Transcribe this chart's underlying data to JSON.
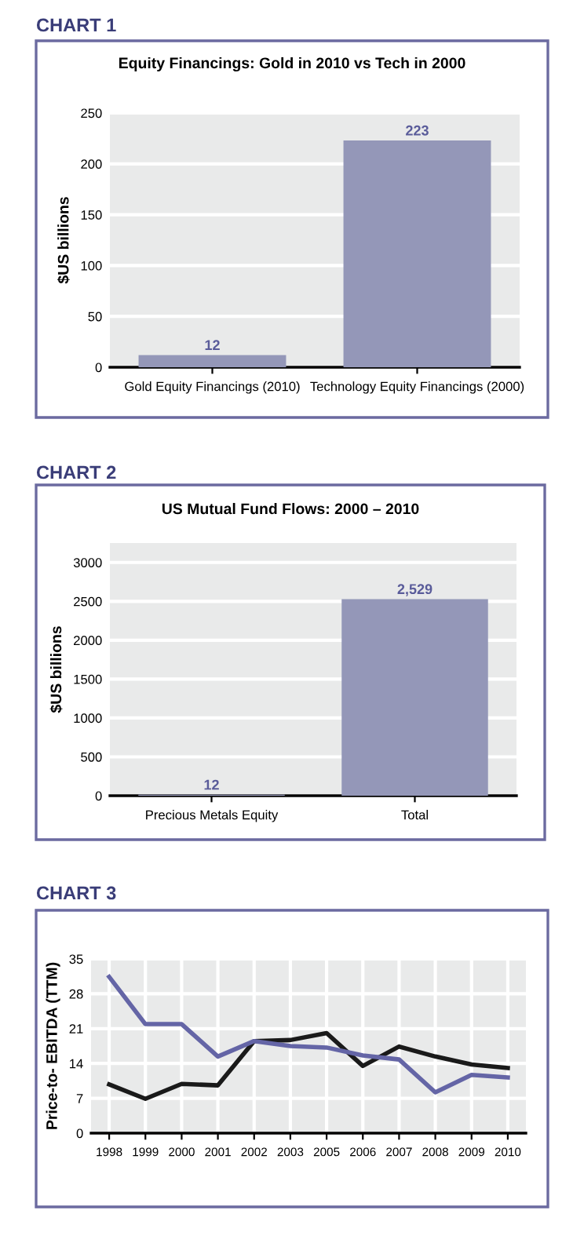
{
  "chart_data": [
    {
      "type": "bar",
      "title": "CHART 1",
      "subtitle": "Equity Financings: Gold in 2010 vs Tech in 2000",
      "ylabel": "$US billions",
      "categories": [
        "Gold Equity Financings (2010)",
        "Technology Equity Financings (2000)"
      ],
      "values": [
        12,
        223
      ],
      "color": "#9497b8",
      "ylim": [
        0,
        250
      ],
      "yticks": [
        0,
        50,
        100,
        150,
        200,
        250
      ],
      "grid": "y",
      "data_labels": true
    },
    {
      "type": "bar",
      "title": "CHART 2",
      "subtitle": "US Mutual Fund Flows: 2000 – 2010",
      "ylabel": "$US billions",
      "categories": [
        "Precious Metals Equity",
        "Total"
      ],
      "values": [
        12,
        2529
      ],
      "value_labels": [
        "12",
        "2,529"
      ],
      "color": "#9497b8",
      "ylim": [
        0,
        3250
      ],
      "yticks": [
        0,
        500,
        1000,
        1500,
        2000,
        2500,
        3000
      ],
      "grid": "y"
    },
    {
      "type": "line",
      "title": "CHART 3",
      "ylabel": "Price-to- EBITDA (TTM)",
      "categories": [
        "1998",
        "1999",
        "2000",
        "2001",
        "2002",
        "2003",
        "2005",
        "2006",
        "2007",
        "2008",
        "2009",
        "2010"
      ],
      "series": [
        {
          "color": "#1a1a1a",
          "values": [
            9.8,
            6.9,
            9.9,
            9.6,
            18.5,
            18.7,
            20.1,
            13.5,
            17.4,
            15.4,
            13.8,
            13.1
          ]
        },
        {
          "color": "#6465a6",
          "values": [
            31.4,
            21.9,
            21.9,
            15.4,
            18.5,
            17.5,
            17.2,
            15.6,
            14.8,
            8.2,
            11.7,
            11.2
          ]
        }
      ],
      "ylim": [
        0,
        35
      ],
      "yticks": [
        0,
        7,
        14,
        21,
        28,
        35
      ],
      "grid": true,
      "marker": "none",
      "line_style": "solid"
    }
  ]
}
